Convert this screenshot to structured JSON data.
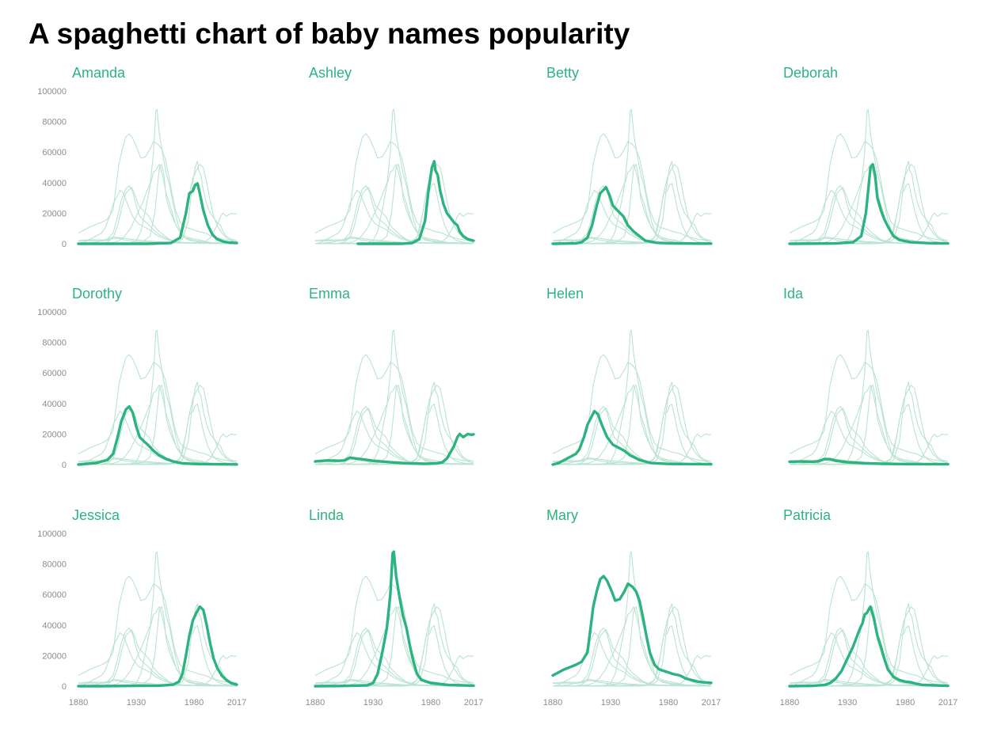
{
  "title": "A spaghetti chart of baby names popularity",
  "colors": {
    "highlight": "#2db37f",
    "background_lines": "#b9e3d2",
    "axis_text": "#8c8c8c"
  },
  "chart_data": {
    "type": "line",
    "layout": "small-multiples",
    "grid": false,
    "x_ticks": [
      "1880",
      "1930",
      "1980",
      "2017"
    ],
    "y_ticks": [
      "0",
      "20000",
      "40000",
      "60000",
      "80000",
      "100000"
    ],
    "xlim": [
      1880,
      2017
    ],
    "ylim": [
      0,
      100000
    ],
    "series": [
      {
        "name": "Amanda",
        "points": [
          [
            1880,
            0
          ],
          [
            1900,
            0
          ],
          [
            1940,
            0
          ],
          [
            1960,
            500
          ],
          [
            1968,
            4000
          ],
          [
            1973,
            20000
          ],
          [
            1976,
            33000
          ],
          [
            1979,
            34500
          ],
          [
            1981,
            38500
          ],
          [
            1983,
            39500
          ],
          [
            1985,
            33000
          ],
          [
            1988,
            22000
          ],
          [
            1992,
            12000
          ],
          [
            1996,
            6000
          ],
          [
            2000,
            3000
          ],
          [
            2005,
            1500
          ],
          [
            2010,
            800
          ],
          [
            2017,
            500
          ]
        ]
      },
      {
        "name": "Ashley",
        "points": [
          [
            1917,
            0
          ],
          [
            1955,
            0
          ],
          [
            1964,
            500
          ],
          [
            1970,
            3000
          ],
          [
            1975,
            15000
          ],
          [
            1978,
            35000
          ],
          [
            1981,
            50000
          ],
          [
            1983,
            54000
          ],
          [
            1984,
            48000
          ],
          [
            1986,
            45000
          ],
          [
            1988,
            35000
          ],
          [
            1991,
            26000
          ],
          [
            1994,
            20000
          ],
          [
            1997,
            17000
          ],
          [
            2000,
            14000
          ],
          [
            2003,
            12000
          ],
          [
            2005,
            8000
          ],
          [
            2008,
            5000
          ],
          [
            2012,
            3000
          ],
          [
            2017,
            2000
          ]
        ]
      },
      {
        "name": "Betty",
        "points": [
          [
            1880,
            0
          ],
          [
            1900,
            300
          ],
          [
            1905,
            1000
          ],
          [
            1910,
            4000
          ],
          [
            1914,
            12000
          ],
          [
            1918,
            25000
          ],
          [
            1921,
            33000
          ],
          [
            1926,
            37000
          ],
          [
            1929,
            32000
          ],
          [
            1932,
            25000
          ],
          [
            1937,
            21000
          ],
          [
            1941,
            18000
          ],
          [
            1945,
            12000
          ],
          [
            1950,
            8000
          ],
          [
            1955,
            5000
          ],
          [
            1960,
            2000
          ],
          [
            1970,
            600
          ],
          [
            1985,
            200
          ],
          [
            2017,
            100
          ]
        ]
      },
      {
        "name": "Deborah",
        "points": [
          [
            1880,
            0
          ],
          [
            1920,
            200
          ],
          [
            1935,
            1000
          ],
          [
            1942,
            5000
          ],
          [
            1946,
            20000
          ],
          [
            1948,
            35000
          ],
          [
            1950,
            50000
          ],
          [
            1952,
            52000
          ],
          [
            1954,
            45000
          ],
          [
            1956,
            30000
          ],
          [
            1959,
            22000
          ],
          [
            1962,
            16000
          ],
          [
            1966,
            10000
          ],
          [
            1970,
            5000
          ],
          [
            1975,
            2500
          ],
          [
            1985,
            1000
          ],
          [
            2000,
            400
          ],
          [
            2017,
            200
          ]
        ]
      },
      {
        "name": "Dorothy",
        "points": [
          [
            1880,
            0
          ],
          [
            1895,
            1000
          ],
          [
            1905,
            3000
          ],
          [
            1910,
            7000
          ],
          [
            1914,
            18000
          ],
          [
            1917,
            28000
          ],
          [
            1921,
            36000
          ],
          [
            1924,
            38000
          ],
          [
            1927,
            34000
          ],
          [
            1930,
            25000
          ],
          [
            1933,
            18000
          ],
          [
            1937,
            15000
          ],
          [
            1940,
            13000
          ],
          [
            1945,
            9000
          ],
          [
            1950,
            6000
          ],
          [
            1955,
            4000
          ],
          [
            1962,
            2000
          ],
          [
            1970,
            800
          ],
          [
            1985,
            300
          ],
          [
            2017,
            100
          ]
        ]
      },
      {
        "name": "Emma",
        "points": [
          [
            1880,
            2000
          ],
          [
            1890,
            2700
          ],
          [
            1900,
            2500
          ],
          [
            1905,
            2700
          ],
          [
            1910,
            4500
          ],
          [
            1915,
            4000
          ],
          [
            1920,
            3500
          ],
          [
            1930,
            2500
          ],
          [
            1945,
            1500
          ],
          [
            1960,
            800
          ],
          [
            1975,
            500
          ],
          [
            1985,
            700
          ],
          [
            1990,
            1500
          ],
          [
            1994,
            4000
          ],
          [
            1997,
            8000
          ],
          [
            2000,
            12000
          ],
          [
            2003,
            18000
          ],
          [
            2005,
            20000
          ],
          [
            2008,
            18000
          ],
          [
            2012,
            20000
          ],
          [
            2015,
            19500
          ],
          [
            2017,
            19800
          ]
        ]
      },
      {
        "name": "Helen",
        "points": [
          [
            1880,
            0
          ],
          [
            1885,
            1000
          ],
          [
            1890,
            3000
          ],
          [
            1895,
            5000
          ],
          [
            1900,
            7000
          ],
          [
            1903,
            10000
          ],
          [
            1907,
            18000
          ],
          [
            1910,
            26000
          ],
          [
            1914,
            32000
          ],
          [
            1916,
            35000
          ],
          [
            1919,
            33000
          ],
          [
            1923,
            25000
          ],
          [
            1927,
            18000
          ],
          [
            1932,
            13000
          ],
          [
            1937,
            11000
          ],
          [
            1942,
            9000
          ],
          [
            1947,
            6000
          ],
          [
            1955,
            3000
          ],
          [
            1965,
            1000
          ],
          [
            1980,
            400
          ],
          [
            2017,
            200
          ]
        ]
      },
      {
        "name": "Ida",
        "points": [
          [
            1880,
            1800
          ],
          [
            1890,
            2000
          ],
          [
            1900,
            1800
          ],
          [
            1905,
            2200
          ],
          [
            1910,
            3500
          ],
          [
            1915,
            3500
          ],
          [
            1920,
            2500
          ],
          [
            1930,
            1500
          ],
          [
            1945,
            900
          ],
          [
            1960,
            500
          ],
          [
            1980,
            300
          ],
          [
            2017,
            200
          ]
        ]
      },
      {
        "name": "Jessica",
        "points": [
          [
            1880,
            0
          ],
          [
            1900,
            0
          ],
          [
            1930,
            200
          ],
          [
            1950,
            300
          ],
          [
            1962,
            1000
          ],
          [
            1967,
            3000
          ],
          [
            1970,
            8000
          ],
          [
            1973,
            20000
          ],
          [
            1976,
            33000
          ],
          [
            1979,
            43000
          ],
          [
            1982,
            48000
          ],
          [
            1985,
            52000
          ],
          [
            1988,
            50000
          ],
          [
            1991,
            40000
          ],
          [
            1994,
            28000
          ],
          [
            1997,
            18000
          ],
          [
            2000,
            12000
          ],
          [
            2004,
            7000
          ],
          [
            2008,
            4000
          ],
          [
            2012,
            2000
          ],
          [
            2017,
            1000
          ]
        ]
      },
      {
        "name": "Linda",
        "points": [
          [
            1880,
            0
          ],
          [
            1900,
            100
          ],
          [
            1925,
            500
          ],
          [
            1930,
            2000
          ],
          [
            1934,
            8000
          ],
          [
            1938,
            22000
          ],
          [
            1942,
            38000
          ],
          [
            1945,
            60000
          ],
          [
            1947,
            87000
          ],
          [
            1948,
            88000
          ],
          [
            1950,
            72000
          ],
          [
            1953,
            58000
          ],
          [
            1956,
            46000
          ],
          [
            1959,
            38000
          ],
          [
            1962,
            26000
          ],
          [
            1965,
            16000
          ],
          [
            1968,
            8000
          ],
          [
            1972,
            4000
          ],
          [
            1980,
            2000
          ],
          [
            1995,
            800
          ],
          [
            2017,
            300
          ]
        ]
      },
      {
        "name": "Mary",
        "points": [
          [
            1880,
            7000
          ],
          [
            1885,
            9000
          ],
          [
            1890,
            11000
          ],
          [
            1895,
            12500
          ],
          [
            1900,
            14000
          ],
          [
            1905,
            16000
          ],
          [
            1910,
            22000
          ],
          [
            1913,
            40000
          ],
          [
            1915,
            52000
          ],
          [
            1918,
            62000
          ],
          [
            1921,
            70000
          ],
          [
            1924,
            72000
          ],
          [
            1927,
            69000
          ],
          [
            1931,
            62000
          ],
          [
            1934,
            56000
          ],
          [
            1938,
            57000
          ],
          [
            1942,
            62000
          ],
          [
            1945,
            67000
          ],
          [
            1947,
            66000
          ],
          [
            1949,
            65000
          ],
          [
            1952,
            62000
          ],
          [
            1955,
            56000
          ],
          [
            1958,
            45000
          ],
          [
            1961,
            33000
          ],
          [
            1964,
            22000
          ],
          [
            1968,
            14000
          ],
          [
            1972,
            11000
          ],
          [
            1976,
            10000
          ],
          [
            1980,
            9000
          ],
          [
            1984,
            8000
          ],
          [
            1990,
            7000
          ],
          [
            1995,
            5000
          ],
          [
            2000,
            4000
          ],
          [
            2005,
            3000
          ],
          [
            2010,
            2500
          ],
          [
            2017,
            2200
          ]
        ]
      },
      {
        "name": "Patricia",
        "points": [
          [
            1880,
            0
          ],
          [
            1900,
            200
          ],
          [
            1910,
            700
          ],
          [
            1915,
            2000
          ],
          [
            1920,
            5000
          ],
          [
            1925,
            10000
          ],
          [
            1930,
            18000
          ],
          [
            1935,
            26000
          ],
          [
            1938,
            32000
          ],
          [
            1941,
            38000
          ],
          [
            1943,
            41000
          ],
          [
            1945,
            47000
          ],
          [
            1947,
            48000
          ],
          [
            1949,
            51000
          ],
          [
            1950,
            52000
          ],
          [
            1953,
            44000
          ],
          [
            1956,
            33000
          ],
          [
            1959,
            26000
          ],
          [
            1962,
            18000
          ],
          [
            1965,
            11000
          ],
          [
            1970,
            6000
          ],
          [
            1975,
            4000
          ],
          [
            1980,
            3000
          ],
          [
            1985,
            2500
          ],
          [
            1990,
            1500
          ],
          [
            1995,
            800
          ],
          [
            2017,
            200
          ]
        ]
      }
    ]
  }
}
